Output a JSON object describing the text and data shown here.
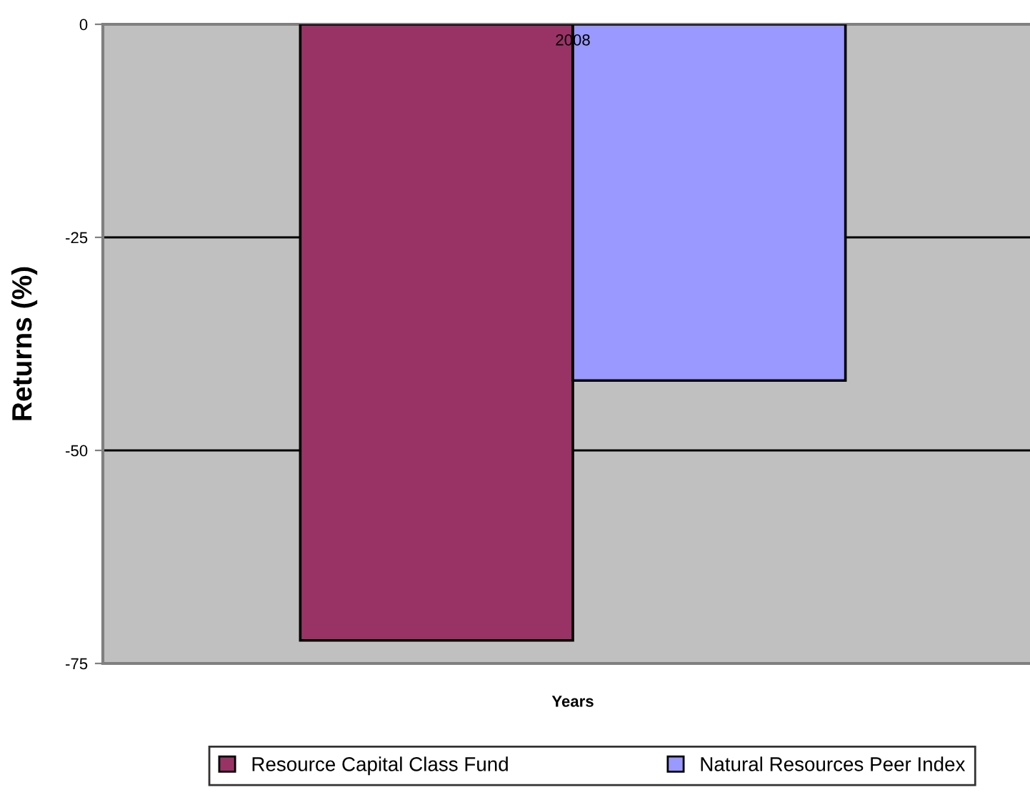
{
  "chart_data": {
    "type": "bar",
    "xlabel": "Years",
    "ylabel": "Returns (%)",
    "categories": [
      "2008"
    ],
    "series": [
      {
        "name": "Resource Capital Class Fund",
        "color": "#993366",
        "values": [
          -72.3
        ]
      },
      {
        "name": "Natural Resources Peer Index",
        "color": "#9999ff",
        "values": [
          -41.8
        ]
      }
    ],
    "ylim": [
      -75,
      0
    ],
    "yticks": [
      -75,
      -50,
      -25,
      0
    ],
    "grid": "y",
    "legend": "bottom"
  }
}
